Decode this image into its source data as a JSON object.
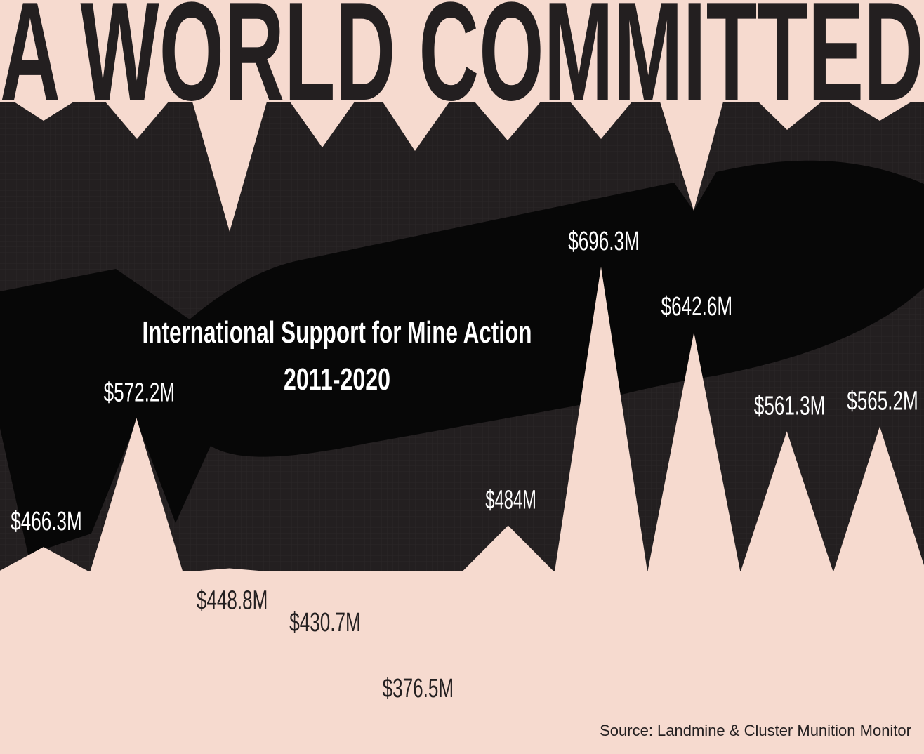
{
  "chart_data": {
    "type": "peaks",
    "title": "A WORLD COMMITTED",
    "subtitle": "International Support for Mine Action",
    "period": "2011-2020",
    "source": "Source: Landmine & Cluster Munition Monitor",
    "values": [
      466.3,
      572.2,
      448.8,
      430.7,
      376.5,
      484,
      696.3,
      642.6,
      561.3,
      565.2
    ],
    "value_labels": [
      "$466.3M",
      "$572.2M",
      "$448.8M",
      "$430.7M",
      "$376.5M",
      "$484M",
      "$696.3M",
      "$642.6M",
      "$561.3M",
      "$565.2M"
    ],
    "color": "#f6dacf"
  }
}
